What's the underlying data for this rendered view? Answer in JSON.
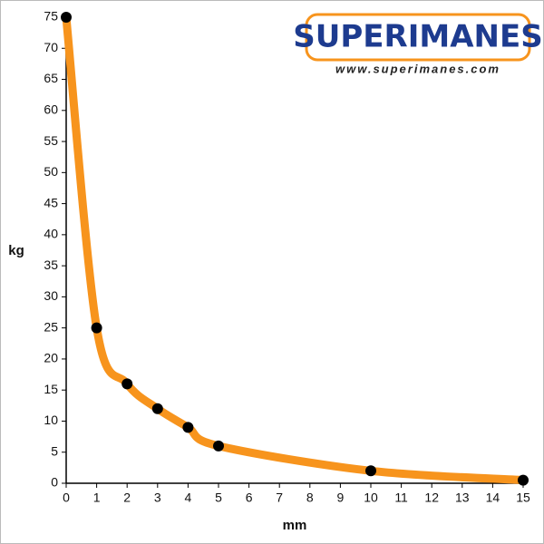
{
  "chart_data": {
    "type": "line",
    "title": "SUPERIMANES",
    "subtitle": "www.superimanes.com",
    "x_label": "mm",
    "y_label": "kg",
    "x": [
      0,
      1,
      2,
      3,
      4,
      5,
      10,
      15
    ],
    "series": [
      {
        "name": "kg",
        "color": "#f7941d",
        "values": [
          75,
          25,
          16,
          12,
          9,
          6,
          2,
          0.5
        ]
      }
    ],
    "xlim": [
      0,
      15
    ],
    "xticks": [
      0,
      1,
      2,
      3,
      4,
      5,
      6,
      7,
      8,
      9,
      10,
      11,
      12,
      13,
      14,
      15
    ],
    "ylim": [
      0,
      75
    ],
    "yticks": [
      0,
      5,
      10,
      15,
      20,
      25,
      30,
      35,
      40,
      45,
      50,
      55,
      60,
      65,
      70,
      75
    ],
    "grid": false,
    "marker_color": "#000000"
  }
}
